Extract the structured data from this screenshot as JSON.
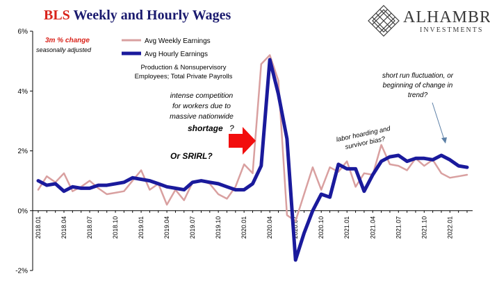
{
  "header": {
    "title_prefix": "BLS",
    "title_rest": "Weekly and Hourly Wages"
  },
  "logo": {
    "name": "ALHAMBRA",
    "subtitle": "INVESTMENTS"
  },
  "colors": {
    "weekly": "#d9a0a0",
    "hourly": "#1a1a9c",
    "annotation_red": "#d9231b",
    "arrow_blue": "#5b7fa6",
    "title_blue": "#1a1a6e"
  },
  "chart_data": {
    "type": "line",
    "ylabel_note": "3m % change",
    "ylabel_note2": "seasonally adjusted",
    "subtitle_lines": [
      "Production & Nonsupervisory",
      "Employees; Total Private Payrolls"
    ],
    "ylim": [
      -2,
      6
    ],
    "yticks": [
      -2,
      0,
      2,
      4,
      6
    ],
    "ytick_labels": [
      "-2%",
      "0%",
      "2%",
      "4%",
      "6%"
    ],
    "grid": false,
    "legend_position": "top-left",
    "x": [
      "2018.01",
      "2018.02",
      "2018.03",
      "2018.04",
      "2018.05",
      "2018.06",
      "2018.07",
      "2018.08",
      "2018.09",
      "2018.10",
      "2018.11",
      "2018.12",
      "2019.01",
      "2019.02",
      "2019.03",
      "2019.04",
      "2019.05",
      "2019.06",
      "2019.07",
      "2019.08",
      "2019.09",
      "2019.10",
      "2019.11",
      "2019.12",
      "2020.01",
      "2020.02",
      "2020.03",
      "2020.04",
      "2020.05",
      "2020.06",
      "2020.07",
      "2020.08",
      "2020.09",
      "2020.10",
      "2020.11",
      "2020.12",
      "2021.01",
      "2021.02",
      "2021.03",
      "2021.04",
      "2021.05",
      "2021.06",
      "2021.07",
      "2021.08",
      "2021.09",
      "2021.10",
      "2021.11",
      "2021.12",
      "2022.01",
      "2022.02",
      "2022.03"
    ],
    "xtick_labels": [
      "2018.01",
      "2018.04",
      "2018.07",
      "2018.10",
      "2019.01",
      "2019.04",
      "2019.07",
      "2019.10",
      "2020.01",
      "2020.04",
      "2020.07",
      "2020.10",
      "2021.01",
      "2021.04",
      "2021.07",
      "2021.10",
      "2022.01"
    ],
    "series": [
      {
        "name": "Avg Weekly Earnings",
        "values": [
          0.7,
          1.15,
          0.95,
          1.25,
          0.65,
          0.8,
          1.0,
          0.75,
          0.55,
          0.6,
          0.65,
          1.0,
          1.35,
          0.7,
          0.9,
          0.2,
          0.7,
          0.35,
          0.95,
          1.0,
          0.9,
          0.55,
          0.4,
          0.8,
          1.55,
          1.25,
          4.9,
          5.2,
          4.35,
          -0.15,
          -0.35,
          0.55,
          1.45,
          0.7,
          1.45,
          1.3,
          1.65,
          0.8,
          1.25,
          1.2,
          2.2,
          1.55,
          1.5,
          1.35,
          1.75,
          1.5,
          1.7,
          1.25,
          1.1,
          1.15,
          1.2
        ]
      },
      {
        "name": "Avg Hourly Earnings",
        "values": [
          1.0,
          0.85,
          0.9,
          0.65,
          0.8,
          0.75,
          0.75,
          0.85,
          0.85,
          0.9,
          0.95,
          1.1,
          1.05,
          1.0,
          0.9,
          0.8,
          0.75,
          0.7,
          0.95,
          1.0,
          0.95,
          0.9,
          0.8,
          0.7,
          0.7,
          0.9,
          1.5,
          5.05,
          3.9,
          2.4,
          -1.65,
          -0.75,
          0.0,
          0.55,
          0.45,
          1.55,
          1.4,
          1.4,
          0.65,
          1.2,
          1.65,
          1.8,
          1.85,
          1.65,
          1.75,
          1.75,
          1.7,
          1.85,
          1.7,
          1.5,
          1.45
        ]
      }
    ],
    "annotations": {
      "intense": [
        "intense competition",
        "for workers due to",
        "massive nationwide"
      ],
      "shortage": "shortage",
      "shortage_q": "?",
      "srirl": "Or SRIRL?",
      "labor": [
        "labor hoarding and",
        "survivor bias?"
      ],
      "short_run": [
        "short run fluctuation, or",
        "beginning of change in",
        "trend?"
      ]
    }
  }
}
